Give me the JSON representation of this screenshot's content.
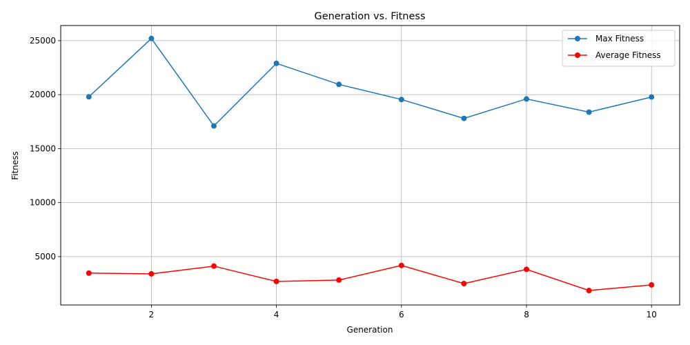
{
  "chart_data": {
    "type": "line",
    "title": "Generation vs. Fitness",
    "xlabel": "Generation",
    "ylabel": "Fitness",
    "xlim": [
      0.55,
      10.45
    ],
    "ylim": [
      520,
      26400
    ],
    "xticks": [
      2,
      4,
      6,
      8,
      10
    ],
    "yticks": [
      5000,
      10000,
      15000,
      20000,
      25000
    ],
    "grid": true,
    "legend_position": "top-right",
    "x": [
      1,
      2,
      3,
      4,
      5,
      6,
      7,
      8,
      9,
      10
    ],
    "series": [
      {
        "name": "Max Fitness",
        "color": "#1f77b4",
        "marker": "circle",
        "values": [
          19800,
          25200,
          17100,
          22900,
          20950,
          19550,
          17800,
          19600,
          18380,
          19780
        ]
      },
      {
        "name": "Average Fitness",
        "color": "#ff0000",
        "marker": "circle",
        "values": [
          3470,
          3400,
          4120,
          2700,
          2830,
          4180,
          2500,
          3820,
          1860,
          2380
        ]
      }
    ]
  }
}
